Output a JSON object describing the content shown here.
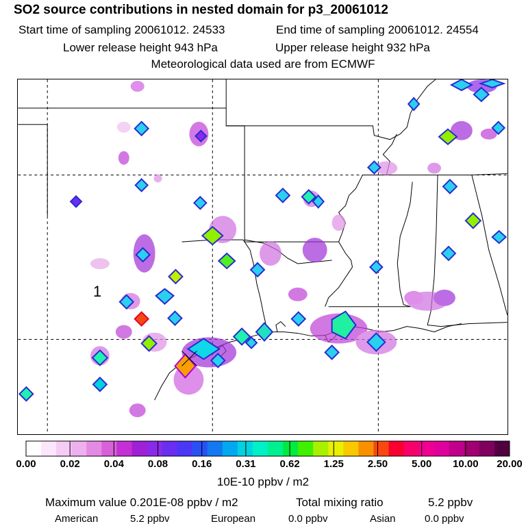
{
  "header": {
    "title": "SO2 source contributions in nested domain for p3_20061012",
    "start_time": "Start time of sampling 20061012. 24533",
    "end_time": "End time of sampling 20061012. 24554",
    "lower_release": "Lower release height  943 hPa",
    "upper_release": "Upper release height  932 hPa",
    "met_data": "Meteorological data used are from ECMWF"
  },
  "map": {
    "label": "1"
  },
  "colorbar": {
    "colors": [
      "#ffffff",
      "#fbe6fb",
      "#f5ccf5",
      "#eeb0ee",
      "#e48ae4",
      "#d860d8",
      "#c430d4",
      "#a020d6",
      "#8a2ae8",
      "#6a2ef0",
      "#4a38f5",
      "#2850f5",
      "#1478f0",
      "#00a8f0",
      "#00d2e0",
      "#00f0c8",
      "#00f090",
      "#00ea40",
      "#40f000",
      "#a8f000",
      "#e8f000",
      "#f8c800",
      "#f89000",
      "#f84810",
      "#f80030",
      "#f8006a",
      "#f00090",
      "#e0009c",
      "#c0008a",
      "#a00070",
      "#800060",
      "#500040"
    ],
    "tick_labels": [
      "0.00",
      "0.02",
      "0.04",
      "0.08",
      "0.16",
      "0.31",
      "0.62",
      "1.25",
      "2.50",
      "5.00",
      "10.00",
      "20.00"
    ],
    "unit": "10E-10 ppbv / m2"
  },
  "stats": {
    "max_label": "Maximum value  0.201E-08 ppbv / m2",
    "total_label": "Total mixing ratio",
    "total_value": "5.2 ppbv",
    "sources": [
      {
        "name": "American",
        "value": "5.2 ppbv"
      },
      {
        "name": "European",
        "value": "0.0 ppbv"
      },
      {
        "name": "Asian",
        "value": "0.0 ppbv"
      }
    ]
  }
}
